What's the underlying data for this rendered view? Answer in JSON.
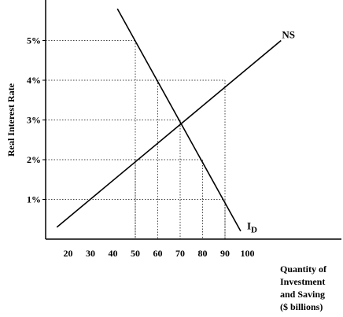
{
  "chart_data": {
    "type": "line",
    "xlabel_lines": [
      "Quantity of",
      "Investment",
      "and Saving",
      "($ billions)"
    ],
    "ylabel": "Real Interest Rate",
    "xlim": [
      10,
      110
    ],
    "ylim": [
      0,
      6
    ],
    "x_ticks": [
      20,
      30,
      40,
      50,
      60,
      70,
      80,
      90,
      100
    ],
    "x_tick_labels": [
      "20",
      "30",
      "40",
      "50",
      "60",
      "70",
      "80",
      "90",
      "100"
    ],
    "y_ticks": [
      1,
      2,
      3,
      4,
      5
    ],
    "y_tick_labels": [
      "1%",
      "2%",
      "3%",
      "4%",
      "5%"
    ],
    "series": [
      {
        "name": "NS",
        "x": [
          15,
          115
        ],
        "y": [
          0.3,
          5.0
        ],
        "label_x": 114,
        "label_y": 5.1
      },
      {
        "name": "I",
        "subscript": "D",
        "x": [
          42,
          97
        ],
        "y": [
          5.8,
          0.2
        ],
        "label_x": 97,
        "label_y": 0.25
      }
    ],
    "guides": [
      {
        "x": 50,
        "y": 5
      },
      {
        "x": 60,
        "y": 4
      },
      {
        "x": 90,
        "y": 4
      },
      {
        "x": 70,
        "y": 3
      },
      {
        "x": 50,
        "y": 2
      },
      {
        "x": 80,
        "y": 2
      },
      {
        "x": 90,
        "y": 1
      }
    ],
    "grid": false,
    "guide_style": "dotted"
  }
}
